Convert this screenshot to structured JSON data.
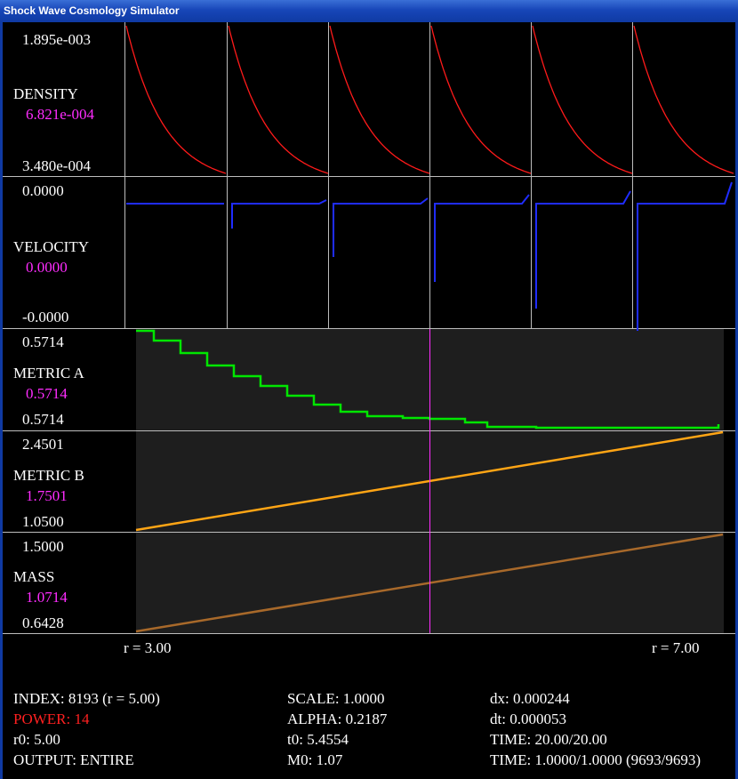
{
  "window": {
    "title": "Shock Wave Cosmology Simulator"
  },
  "panels": {
    "density": {
      "label": "DENSITY",
      "max": "1.895e-003",
      "current": "6.821e-004",
      "min": "3.480e-004",
      "line_color": "#ff1a1a"
    },
    "velocity": {
      "label": "VELOCITY",
      "max": "0.0000",
      "current": "0.0000",
      "min": "-0.0000",
      "line_color": "#1f2cff"
    },
    "metric_a": {
      "label": "METRIC A",
      "max": "0.5714",
      "current": "0.5714",
      "min": "0.5714",
      "line_color": "#00e600"
    },
    "metric_b": {
      "label": "METRIC B",
      "max": "2.4501",
      "current": "1.7501",
      "min": "1.0500",
      "line_color": "#ffa515"
    },
    "mass": {
      "label": "MASS",
      "max": "1.5000",
      "current": "1.0714",
      "min": "0.6428",
      "line_color": "#a8692a"
    }
  },
  "axis": {
    "r_min_label": "r = 3.00",
    "r_max_label": "r = 7.00"
  },
  "status": {
    "col1": {
      "index": "INDEX: 8193 (r = 5.00)",
      "power": "POWER: 14",
      "r0": "r0: 5.00",
      "output": "OUTPUT: ENTIRE"
    },
    "col2": {
      "scale": "SCALE: 1.0000",
      "alpha": "ALPHA: 0.2187",
      "t0": "t0: 5.4554",
      "m0": "M0: 1.07"
    },
    "col3": {
      "dx": "dx: 0.000244",
      "dt": "dt: 0.000053",
      "time1": "TIME: 20.00/20.00",
      "time2": "TIME: 1.0000/1.0000 (9693/9693)"
    }
  },
  "colors": {
    "cursor": "#ff2cff",
    "highlight_label": "#ff2cff",
    "power_label": "#ff2020",
    "plot_bg_dark": "#1e1e1e"
  }
}
